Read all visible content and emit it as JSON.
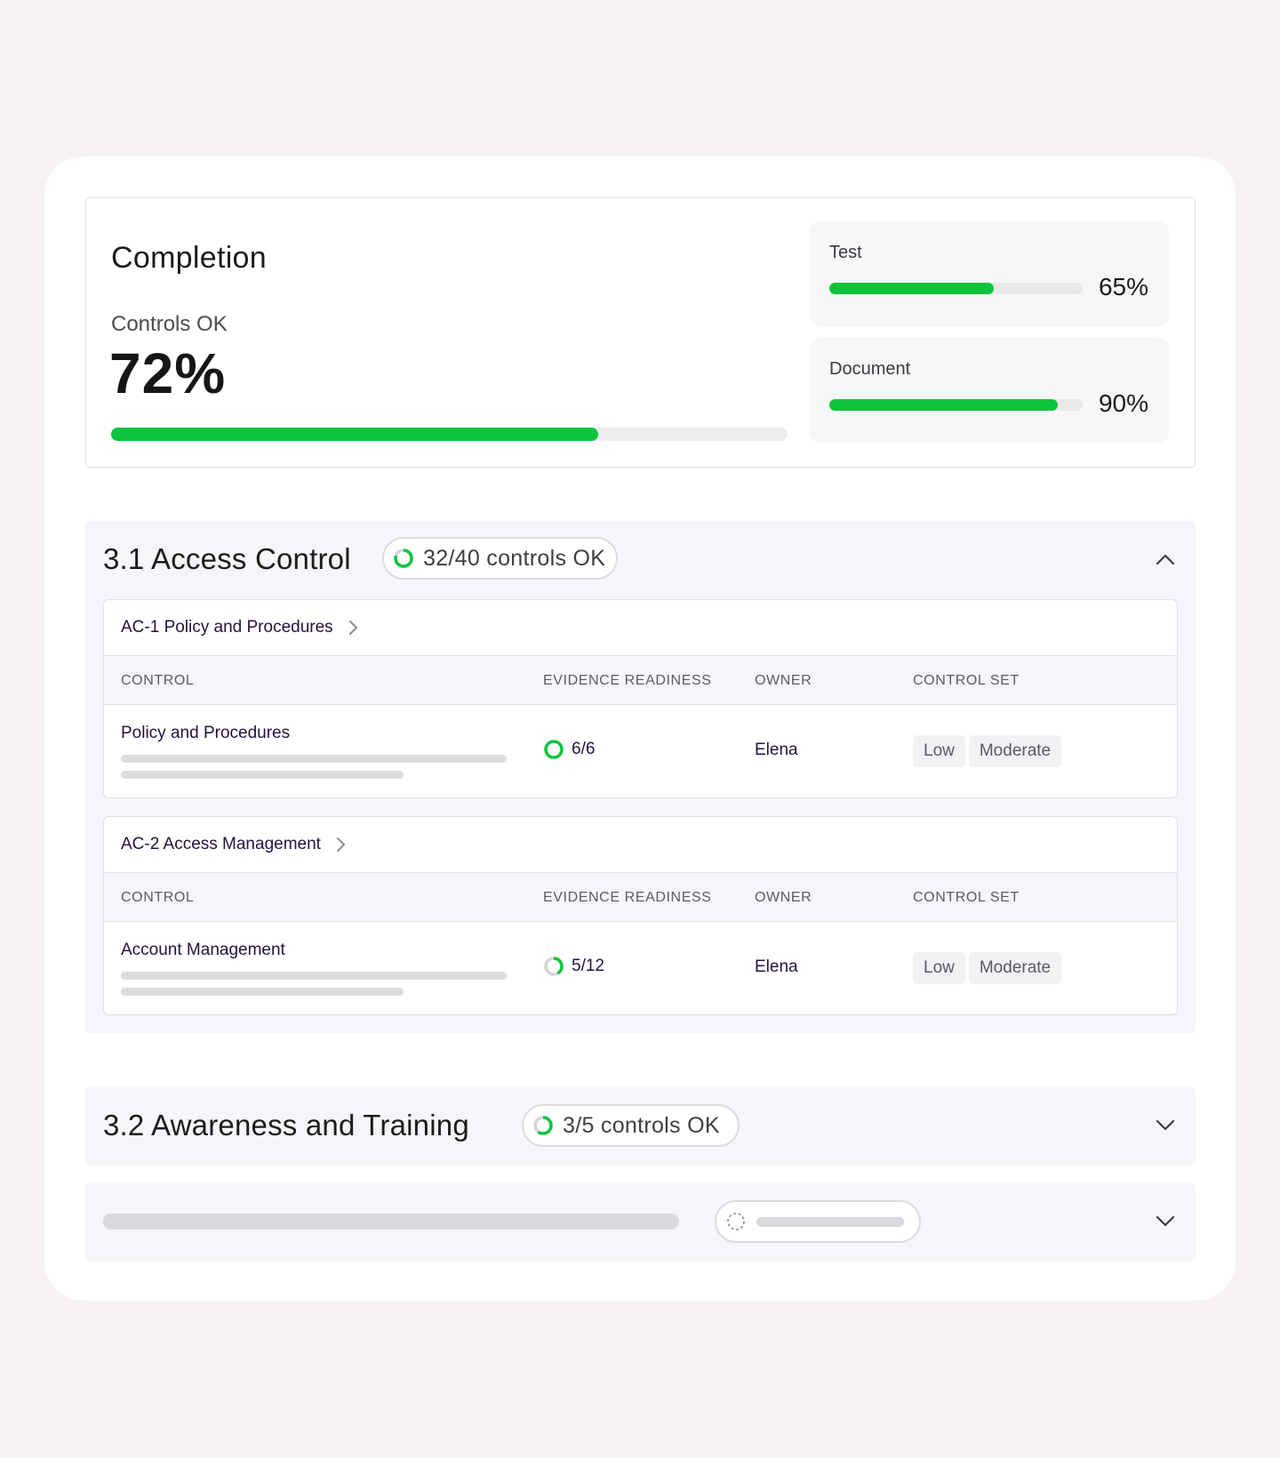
{
  "completion": {
    "title": "Completion",
    "controls_label": "Controls OK",
    "controls_value": "72%",
    "progress_percent": 72
  },
  "metrics": [
    {
      "label": "Test",
      "value": "65%",
      "progress_percent": 65
    },
    {
      "label": "Document",
      "value": "90%",
      "progress_percent": 90
    }
  ],
  "sections": [
    {
      "title": "3.1 Access Control",
      "status": "32/40 controls OK",
      "expanded": true,
      "groups": [
        {
          "title": "AC-1 Policy and Procedures",
          "columns": [
            "CONTROL",
            "EVIDENCE READINESS",
            "OWNER",
            "CONTROL SET"
          ],
          "rows": [
            {
              "control": "Policy and Procedures",
              "readiness": "6/6",
              "owner": "Elena",
              "tags": [
                "Low",
                "Moderate"
              ]
            }
          ]
        },
        {
          "title": "AC-2 Access Management",
          "columns": [
            "CONTROL",
            "EVIDENCE READINESS",
            "OWNER",
            "CONTROL SET"
          ],
          "rows": [
            {
              "control": "Account Management",
              "readiness": "5/12",
              "owner": "Elena",
              "tags": [
                "Low",
                "Moderate"
              ]
            }
          ]
        }
      ]
    },
    {
      "title": "3.2 Awareness and Training",
      "status": "3/5 controls OK",
      "expanded": false
    }
  ],
  "colors": {
    "accent_green": "#0dc43c",
    "track": "#ecebee",
    "link_text": "#24133e"
  },
  "icons": {
    "collapse": "chevron-up-icon",
    "expand": "chevron-down-icon",
    "group_link": "chevron-right-icon",
    "status": "progress-ring-icon"
  }
}
